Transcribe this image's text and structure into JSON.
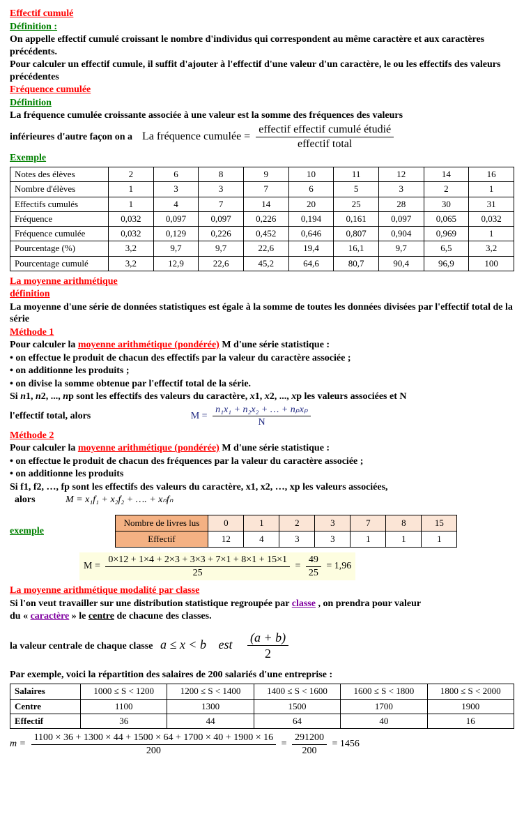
{
  "section1": {
    "title": "Effectif cumulé",
    "defLabel": "Définition :",
    "defText1": "On appelle effectif cumulé croissant le nombre d'individus qui correspondent au même caractère et aux caractères précédents.",
    "defText2": "Pour calculer un effectif cumule, il suffit d'ajouter à l'effectif d'une valeur d'un caractère, le ou les effectifs des valeurs précédentes"
  },
  "section2": {
    "title": "Fréquence cumulée",
    "defLabel": "Définition",
    "text": "La fréquence cumulée croissante associée à une valeur est la somme des fréquences des valeurs",
    "formulaLead": "inférieures  d'autre façon on a",
    "formulaLabel": "La fréquence cumulée =",
    "formulaNum": "effectif effectif cumulé étudié",
    "formulaDen": "effectif total"
  },
  "exampleLabel": "Exemple",
  "table": {
    "rows": [
      {
        "label": "Notes des élèves",
        "vals": [
          "2",
          "6",
          "8",
          "9",
          "10",
          "11",
          "12",
          "14",
          "16"
        ]
      },
      {
        "label": "Nombre d'élèves",
        "vals": [
          "1",
          "3",
          "3",
          "7",
          "6",
          "5",
          "3",
          "2",
          "1"
        ]
      },
      {
        "label": "Effectifs cumulés",
        "vals": [
          "1",
          "4",
          "7",
          "14",
          "20",
          "25",
          "28",
          "30",
          "31"
        ]
      },
      {
        "label": "Fréquence",
        "vals": [
          "0,032",
          "0,097",
          "0,097",
          "0,226",
          "0,194",
          "0,161",
          "0,097",
          "0,065",
          "0,032"
        ]
      },
      {
        "label": "Fréquence cumulée",
        "vals": [
          "0,032",
          "0,129",
          "0,226",
          "0,452",
          "0,646",
          "0,807",
          "0,904",
          "0,969",
          "1"
        ]
      },
      {
        "label": "Pourcentage (%)",
        "vals": [
          "3,2",
          "9,7",
          "9,7",
          "22,6",
          "19,4",
          "16,1",
          "9,7",
          "6,5",
          "3,2"
        ]
      },
      {
        "label": "Pourcentage cumulé",
        "vals": [
          "3,2",
          "12,9",
          "22,6",
          "45,2",
          "64,6",
          "80,7",
          "90,4",
          "96,9",
          "100"
        ]
      }
    ]
  },
  "moyenne": {
    "title": "La moyenne arithmétique",
    "defLabel": "définition",
    "defText": "La moyenne d'une série de données statistiques est égale à la somme de toutes les données divisées par l'effectif total de la série"
  },
  "methode1": {
    "title": "Méthode 1",
    "text1": "Pour calculer la ",
    "highlight1": "moyenne arithmétique (pondérée)",
    "text1b": " M d'une série statistique :",
    "bullet1": "• on effectue le produit de chacun des effectifs par la valeur du caractère associée ;",
    "bullet2": "• on additionne les produits ;",
    "bullet3": "• on divise la somme obtenue par l'effectif total de la série.",
    "text2a": "Si ",
    "text2b": "1, ",
    "text2c": "2, ..., ",
    "text2d": "p sont les effectifs des valeurs du caractère, ",
    "text2e": "1, ",
    "text2f": "2, ..., ",
    "text2g": "p les valeurs associées et N",
    "text3": "l'effectif total,  alors",
    "formulaM": "M =",
    "formulaNum": "n₁x₁ + n₂x₂ + … + nₚxₚ",
    "formulaDen": "N"
  },
  "methode2": {
    "title": "Méthode 2",
    "text1": "Pour calculer la ",
    "highlight1": "moyenne arithmétique (pondérée)",
    "text1b": " M d'une série statistique :",
    "bullet1": "• on effectue le produit de chacun des fréquences  par la valeur du caractère associée ;",
    "bullet2": "• on additionne les produits",
    "text2": "Si f1, f2, …, fp sont les effectifs des valeurs du caractère, x1, x2, …, xp les valeurs associées,",
    "text3": "alors",
    "formula": "M = x₁f₁  +  x₂f₂  +  ….  +  xₙfₙ"
  },
  "exemple2": {
    "label": "exemple",
    "headers": [
      "Nombre de livres lus",
      "0",
      "1",
      "2",
      "3",
      "7",
      "8",
      "15"
    ],
    "row": [
      "Effectif",
      "12",
      "4",
      "3",
      "3",
      "1",
      "1",
      "1"
    ],
    "calcM": "M =",
    "calcNum": "0×12 + 1×4 + 2×3 + 3×3 + 7×1 + 8×1 + 15×1",
    "calcDen": "25",
    "calcEq1": "=",
    "calcNum2": "49",
    "calcDen2": "25",
    "calcRes": "= 1,96"
  },
  "classe": {
    "title": "La moyenne arithmétique modalité par classe",
    "text1a": "Si l'on veut travailler sur une distribution statistique regroupée par ",
    "classe": "classe",
    "text1b": " , on prendra pour valeur",
    "text2a": "du « ",
    "caractere": "caractère",
    "text2b": " » le ",
    "centre": "centre",
    "text2c": " de chacune des classes.",
    "text3": "la valeur centrale de chaque classe",
    "formulaA": "a ≤ x < b",
    "formulaEst": "est",
    "formulaNum": "(a + b)",
    "formulaDen": "2"
  },
  "salaires": {
    "intro": "Par exemple, voici la répartition des salaires de 200 salariés d'une entreprise :",
    "rows": [
      {
        "label": "Salaires",
        "vals": [
          "1000 ≤ S < 1200",
          "1200 ≤ S < 1400",
          "1400 ≤ S < 1600",
          "1600 ≤ S < 1800",
          "1800 ≤ S < 2000"
        ]
      },
      {
        "label": "Centre",
        "vals": [
          "1100",
          "1300",
          "1500",
          "1700",
          "1900"
        ]
      },
      {
        "label": "Effectif",
        "vals": [
          "36",
          "44",
          "64",
          "40",
          "16"
        ]
      }
    ],
    "mEq": "m =",
    "num": "1100 × 36 + 1300 × 44 + 1500 × 64 + 1700 × 40 + 1900 × 16",
    "den": "200",
    "eq": "=",
    "num2": "291200",
    "den2": "200",
    "res": "= 1456"
  }
}
